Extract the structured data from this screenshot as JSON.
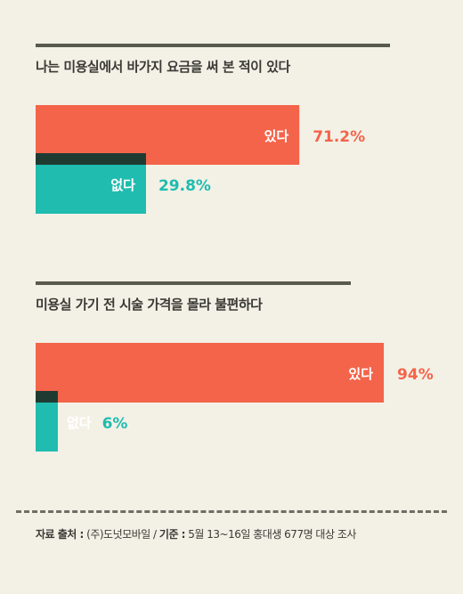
{
  "colors": {
    "yes": "#f4644a",
    "no": "#1fbcaf",
    "overlap": "#1f3b31"
  },
  "chart_data": [
    {
      "type": "bar",
      "title": "나는 미용실에서 바가지 요금을 써 본 적이 있다",
      "categories": [
        "있다",
        "없다"
      ],
      "values": [
        71.2,
        29.8
      ],
      "value_labels": [
        "71.2%",
        "29.8%"
      ],
      "ylim": [
        0,
        100
      ]
    },
    {
      "type": "bar",
      "title": "미용실 가기 전 시술 가격을 몰라 불편하다",
      "categories": [
        "있다",
        "없다"
      ],
      "values": [
        94,
        6
      ],
      "value_labels": [
        "94%",
        "6%"
      ],
      "ylim": [
        0,
        100
      ]
    }
  ],
  "source": {
    "source_label": "자료 출처 :",
    "source_value": " (주)도넛모바일  /  ",
    "basis_label": "기준 :",
    "basis_value": " 5월 13~16일 홍대생 677명 대상 조사"
  }
}
